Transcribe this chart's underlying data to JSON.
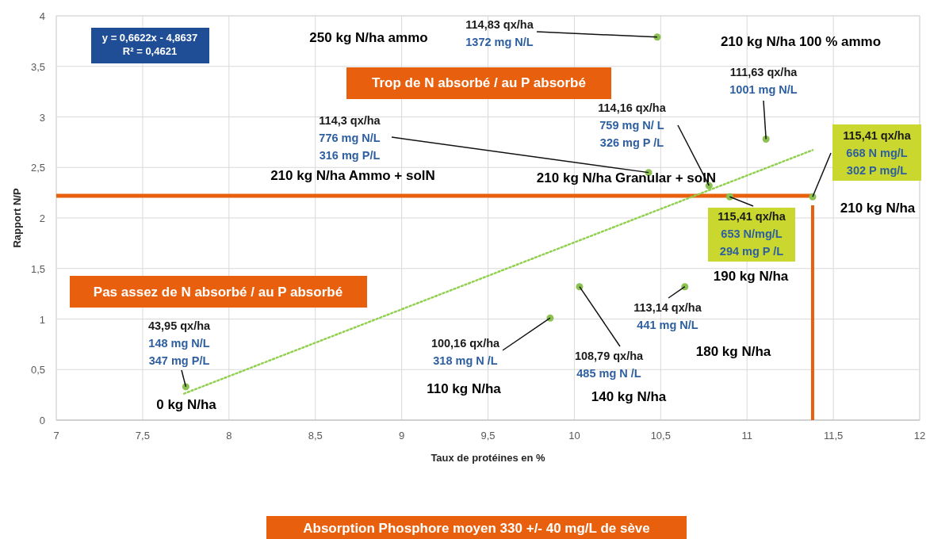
{
  "chart_data": {
    "type": "scatter",
    "xlabel": "Taux de protéines en %",
    "ylabel": "Rapport N/P",
    "xlim": [
      7,
      12
    ],
    "ylim": [
      0,
      4
    ],
    "xticks": [
      7,
      {
        "value": 7.5,
        "label": "7,5"
      },
      8,
      {
        "value": 8.5,
        "label": "8,5"
      },
      9,
      {
        "value": 9.5,
        "label": "9,5"
      },
      10,
      {
        "value": 10.5,
        "label": "10,5"
      },
      11,
      {
        "value": 11.5,
        "label": "11,5"
      },
      12
    ],
    "yticks": [
      0,
      {
        "value": 0.5,
        "label": "0,5"
      },
      1,
      {
        "value": 1.5,
        "label": "1,5"
      },
      2,
      {
        "value": 2.5,
        "label": "2,5"
      },
      3,
      {
        "value": 3.5,
        "label": "3,5"
      },
      4
    ],
    "grid": true,
    "series": [
      {
        "type": "line",
        "color": "#92d050",
        "line_style": "dotted",
        "x": [
          7.74,
          11.38
        ],
        "values": [
          0.262,
          2.672
        ]
      },
      {
        "type": "scatter",
        "color": "#8cc152",
        "marker": "circle",
        "x": [
          7.75,
          9.86,
          10.03,
          10.64,
          10.43,
          10.48,
          10.78,
          11.11,
          10.9,
          11.38
        ],
        "values": [
          0.33,
          1.01,
          1.32,
          1.32,
          2.45,
          3.79,
          2.32,
          2.78,
          2.21,
          2.21
        ]
      }
    ],
    "ref_lines": [
      {
        "axis": "y",
        "value": 2.22,
        "color": "#e8600e"
      },
      {
        "axis": "x",
        "value": 11.38,
        "color": "#e8600e"
      }
    ],
    "annotations": [
      "y = 0,6622x - 4,8637\nR² = 0,4621",
      "Trop de N absorbé / au P absorbé",
      "Pas assez de N absorbé / au P absorbé",
      "Absorption Phosphore moyen 330 +/- 40 mg/L de sève",
      {
        "text": "43,95 qx/ha\n148 mg N/L\n347 mg P/L",
        "x": 7.75,
        "y": 0.33
      },
      {
        "text": "100,16 qx/ha\n318 mg N /L",
        "x": 9.86,
        "y": 1.01
      },
      {
        "text": "108,79 qx/ha\n485 mg N /L",
        "x": 10.03,
        "y": 1.32
      },
      {
        "text": "113,14 qx/ha\n441 mg N/L",
        "x": 10.64,
        "y": 1.32
      },
      {
        "text": "114,3 qx/ha\n776 mg N/L\n316 mg P/L",
        "x": 10.43,
        "y": 2.45
      },
      {
        "text": "114,83 qx/ha\n1372 mg N/L",
        "x": 10.48,
        "y": 3.79
      },
      {
        "text": "114,16 qx/ha\n759 mg N/ L\n326 mg P /L",
        "x": 10.78,
        "y": 2.32
      },
      {
        "text": "111,63 qx/ha\n1001 mg N/L",
        "x": 11.11,
        "y": 2.78
      },
      {
        "text": "115,41 qx/ha\n653 N/mg/L\n294 mg P /L",
        "x": 10.9,
        "y": 2.21
      },
      {
        "text": "115,41 qx/ha\n668 N mg/L\n302 P mg/L",
        "x": 11.38,
        "y": 2.21
      },
      "0 kg N/ha",
      "110 kg N/ha",
      "140 kg N/ha",
      "180 kg N/ha",
      "190 kg N/ha",
      "210 kg N/ha",
      "210 kg N/ha Granular + solN",
      "210 kg N/ha Ammo + solN",
      "250 kg N/ha ammo",
      "210 kg N/ha 100 % ammo"
    ]
  }
}
